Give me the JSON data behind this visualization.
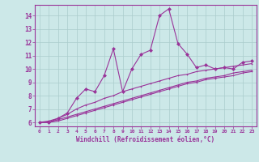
{
  "xlabel": "Windchill (Refroidissement éolien,°C)",
  "bg_color": "#cce8e8",
  "grid_color": "#aacccc",
  "line_color": "#993399",
  "xlim": [
    -0.5,
    23.5
  ],
  "ylim": [
    5.7,
    14.8
  ],
  "xticks": [
    0,
    1,
    2,
    3,
    4,
    5,
    6,
    7,
    8,
    9,
    10,
    11,
    12,
    13,
    14,
    15,
    16,
    17,
    18,
    19,
    20,
    21,
    22,
    23
  ],
  "yticks": [
    6,
    7,
    8,
    9,
    10,
    11,
    12,
    13,
    14
  ],
  "series": [
    [
      6.0,
      6.0,
      6.3,
      6.7,
      7.8,
      8.5,
      8.3,
      9.5,
      11.5,
      8.3,
      10.0,
      11.1,
      11.4,
      14.0,
      14.5,
      11.9,
      11.1,
      10.1,
      10.3,
      10.0,
      10.1,
      10.0,
      10.5,
      10.6
    ],
    [
      6.0,
      6.0,
      6.3,
      6.7,
      7.8,
      8.5,
      8.3,
      9.5,
      11.5,
      8.3,
      10.0,
      11.1,
      11.4,
      14.0,
      14.5,
      11.9,
      11.1,
      10.1,
      10.3,
      10.0,
      10.1,
      10.0,
      10.5,
      10.6
    ],
    [
      6.0,
      6.1,
      6.3,
      6.6,
      7.0,
      7.3,
      7.5,
      7.8,
      8.0,
      8.3,
      8.5,
      8.7,
      8.9,
      9.1,
      9.3,
      9.5,
      9.6,
      9.8,
      9.9,
      10.0,
      10.1,
      10.2,
      10.3,
      10.4
    ],
    [
      6.0,
      6.0,
      6.2,
      6.4,
      6.6,
      6.8,
      7.0,
      7.2,
      7.4,
      7.6,
      7.8,
      8.0,
      8.2,
      8.4,
      8.6,
      8.8,
      9.0,
      9.1,
      9.3,
      9.4,
      9.5,
      9.7,
      9.8,
      9.9
    ],
    [
      6.0,
      6.0,
      6.1,
      6.3,
      6.5,
      6.7,
      6.9,
      7.1,
      7.3,
      7.5,
      7.7,
      7.9,
      8.1,
      8.3,
      8.5,
      8.7,
      8.9,
      9.0,
      9.2,
      9.3,
      9.4,
      9.5,
      9.7,
      9.8
    ]
  ]
}
